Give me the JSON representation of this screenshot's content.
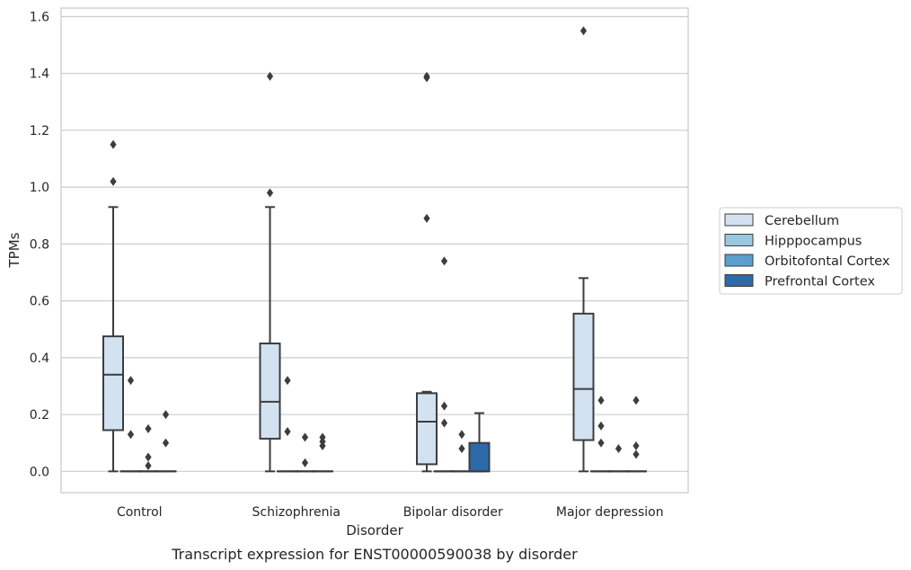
{
  "chart_data": {
    "type": "box",
    "title": "",
    "caption": "Transcript expression for ENST00000590038 by disorder",
    "xlabel": "Disorder",
    "ylabel": "TPMs",
    "ylim": [
      -0.075,
      1.63
    ],
    "yticks": [
      "0.0",
      "0.2",
      "0.4",
      "0.6",
      "0.8",
      "1.0",
      "1.2",
      "1.4",
      "1.6"
    ],
    "grid": true,
    "legend_position": "right",
    "categories": [
      "Control",
      "Schizophrenia",
      "Bipolar disorder",
      "Major depression"
    ],
    "series": [
      {
        "name": "Cerebellum",
        "color": "#d2e2f1",
        "boxes": [
          {
            "q1": 0.145,
            "median": 0.34,
            "q3": 0.475,
            "whisker_low": 0.0,
            "whisker_high": 0.93,
            "outliers": [
              1.02,
              1.15
            ]
          },
          {
            "q1": 0.115,
            "median": 0.245,
            "q3": 0.45,
            "whisker_low": 0.0,
            "whisker_high": 0.93,
            "outliers": [
              0.98,
              1.39
            ]
          },
          {
            "q1": 0.025,
            "median": 0.175,
            "q3": 0.275,
            "whisker_low": 0.0,
            "whisker_high": 0.28,
            "outliers": [
              0.89,
              1.385,
              1.39
            ]
          },
          {
            "q1": 0.11,
            "median": 0.29,
            "q3": 0.555,
            "whisker_low": 0.0,
            "whisker_high": 0.68,
            "outliers": [
              1.55
            ]
          }
        ]
      },
      {
        "name": "Hipppocampus",
        "color": "#9ac8e0",
        "boxes": [
          {
            "q1": 0.0,
            "median": 0.0,
            "q3": 0.0,
            "whisker_low": 0.0,
            "whisker_high": 0.0,
            "outliers": [
              0.13,
              0.32
            ]
          },
          {
            "q1": 0.0,
            "median": 0.0,
            "q3": 0.0,
            "whisker_low": 0.0,
            "whisker_high": 0.0,
            "outliers": [
              0.14,
              0.32
            ]
          },
          {
            "q1": 0.0,
            "median": 0.0,
            "q3": 0.0,
            "whisker_low": 0.0,
            "whisker_high": 0.0,
            "outliers": [
              0.17,
              0.23,
              0.74
            ]
          },
          {
            "q1": 0.0,
            "median": 0.0,
            "q3": 0.0,
            "whisker_low": 0.0,
            "whisker_high": 0.0,
            "outliers": [
              0.1,
              0.16,
              0.25
            ]
          }
        ]
      },
      {
        "name": "Orbitofontal Cortex",
        "color": "#5a9fcd",
        "boxes": [
          {
            "q1": 0.0,
            "median": 0.0,
            "q3": 0.0,
            "whisker_low": 0.0,
            "whisker_high": 0.0,
            "outliers": [
              0.02,
              0.05,
              0.15
            ]
          },
          {
            "q1": 0.0,
            "median": 0.0,
            "q3": 0.0,
            "whisker_low": 0.0,
            "whisker_high": 0.0,
            "outliers": [
              0.03,
              0.12
            ]
          },
          {
            "q1": 0.0,
            "median": 0.0,
            "q3": 0.0,
            "whisker_low": 0.0,
            "whisker_high": 0.0,
            "outliers": [
              0.08,
              0.13
            ]
          },
          {
            "q1": 0.0,
            "median": 0.0,
            "q3": 0.0,
            "whisker_low": 0.0,
            "whisker_high": 0.0,
            "outliers": [
              0.08
            ]
          }
        ]
      },
      {
        "name": "Prefrontal Cortex",
        "color": "#2c6aa8",
        "boxes": [
          {
            "q1": 0.0,
            "median": 0.0,
            "q3": 0.0,
            "whisker_low": 0.0,
            "whisker_high": 0.0,
            "outliers": [
              0.1,
              0.2
            ]
          },
          {
            "q1": 0.0,
            "median": 0.0,
            "q3": 0.0,
            "whisker_low": 0.0,
            "whisker_high": 0.0,
            "outliers": [
              0.09,
              0.105,
              0.12
            ]
          },
          {
            "q1": 0.0,
            "median": 0.0,
            "q3": 0.1,
            "whisker_low": 0.0,
            "whisker_high": 0.205,
            "outliers": []
          },
          {
            "q1": 0.0,
            "median": 0.0,
            "q3": 0.0,
            "whisker_low": 0.0,
            "whisker_high": 0.0,
            "outliers": [
              0.06,
              0.09,
              0.25
            ]
          }
        ]
      }
    ]
  }
}
